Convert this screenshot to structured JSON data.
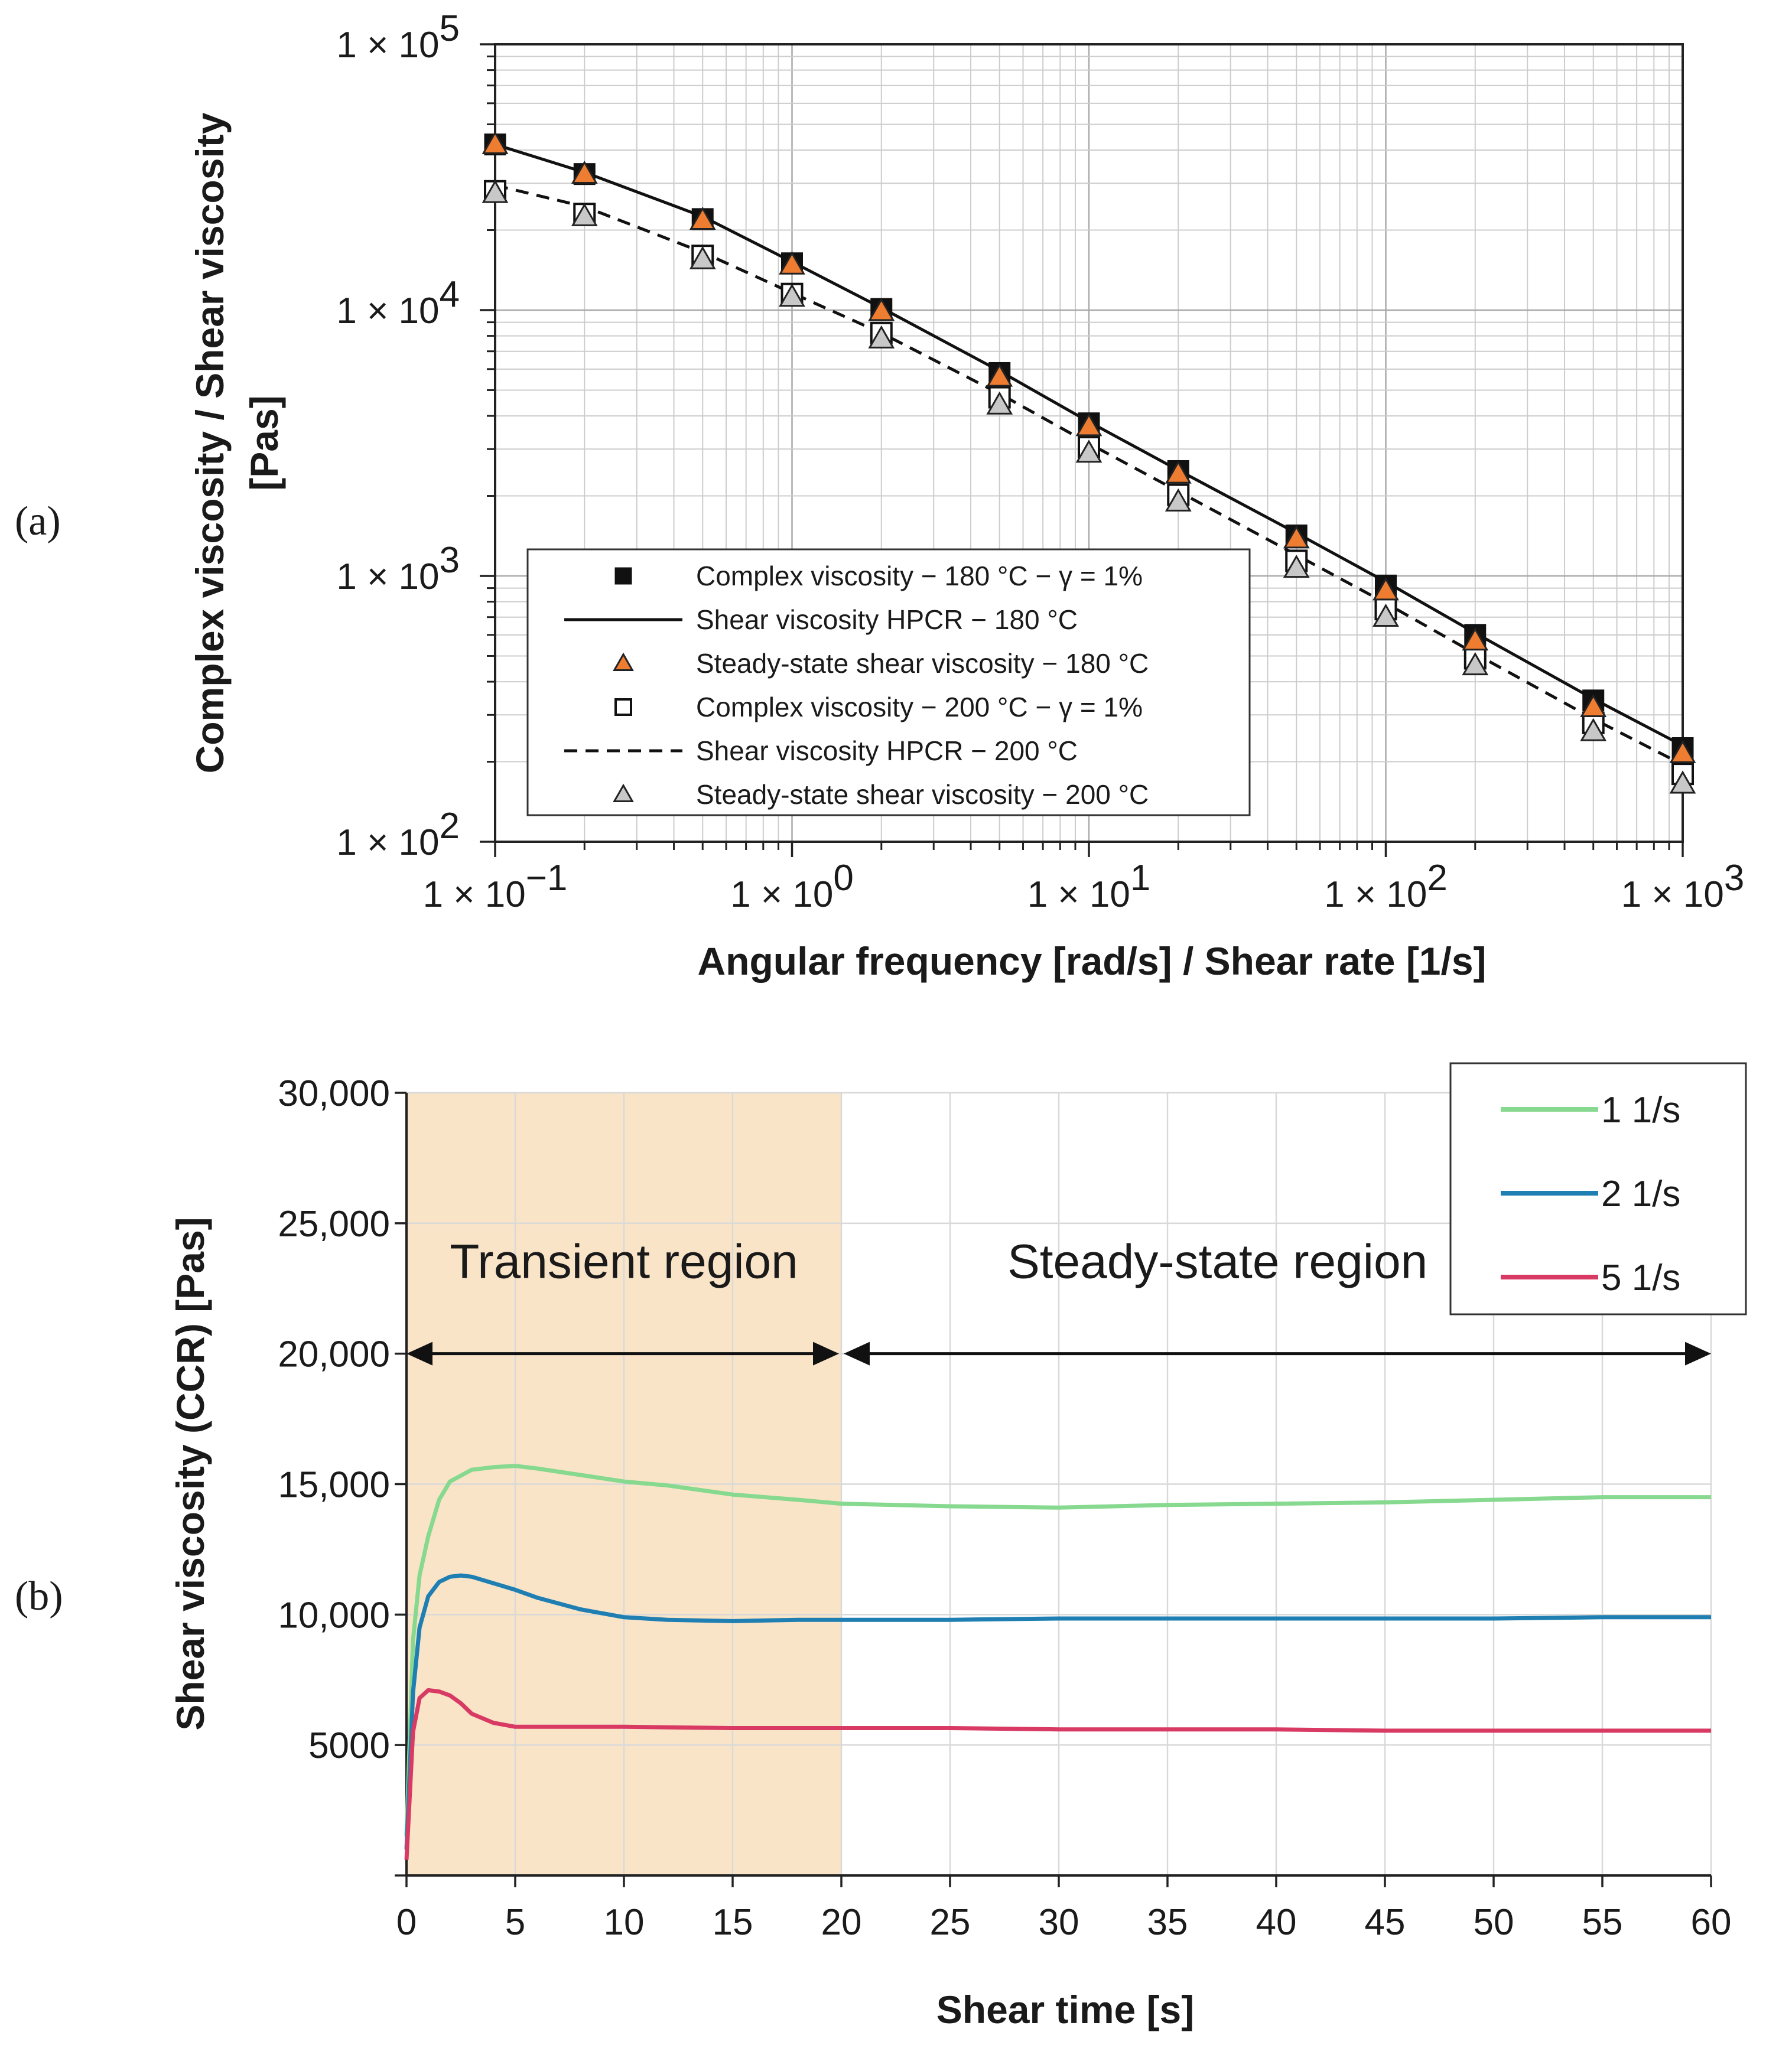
{
  "panels": {
    "a": {
      "label": "(a)"
    },
    "b": {
      "label": "(b)"
    }
  },
  "chart_data": [
    {
      "id": "a",
      "type": "scatter",
      "title": "",
      "xlabel": "Angular frequency [rad/s] / Shear rate [1/s]",
      "ylabel": "Complex viscosity / Shear viscosity",
      "ylabel2": "[Pas]",
      "xscale": "log",
      "yscale": "log",
      "xlim": [
        0.1,
        1000
      ],
      "ylim": [
        100,
        100000
      ],
      "grid": true,
      "legend_position": "bottom-right",
      "x_ticks": [
        {
          "mant": "1 × 10",
          "exp": "−1"
        },
        {
          "mant": "1 × 10",
          "exp": "0"
        },
        {
          "mant": "1 × 10",
          "exp": "1"
        },
        {
          "mant": "1 × 10",
          "exp": "2"
        },
        {
          "mant": "1 × 10",
          "exp": "3"
        }
      ],
      "y_ticks": [
        {
          "mant": "1 × 10",
          "exp": "2"
        },
        {
          "mant": "1 × 10",
          "exp": "3"
        },
        {
          "mant": "1 × 10",
          "exp": "4"
        },
        {
          "mant": "1 × 10",
          "exp": "5"
        }
      ],
      "series": [
        {
          "name": "Complex viscosity − 180 °C − γ = 1%",
          "marker": "square-filled",
          "color": "#111111",
          "x": [
            0.1,
            0.2,
            0.5,
            1,
            2,
            5,
            10,
            20,
            50,
            100,
            200,
            500,
            1000
          ],
          "y": [
            42000,
            32500,
            22000,
            15000,
            10100,
            5800,
            3750,
            2480,
            1420,
            920,
            600,
            340,
            225
          ]
        },
        {
          "name": "Shear viscosity HPCR − 180 °C",
          "style": "solid",
          "color": "#111111",
          "x": [
            0.1,
            0.2,
            0.5,
            1,
            2,
            5,
            10,
            20,
            50,
            100,
            200,
            500,
            1000
          ],
          "y": [
            42000,
            33000,
            22500,
            15200,
            10200,
            5900,
            3800,
            2500,
            1450,
            950,
            610,
            345,
            230
          ]
        },
        {
          "name": "Steady-state shear viscosity − 180 °C",
          "marker": "triangle-filled",
          "color": "#ee7d31",
          "x": [
            0.1,
            0.2,
            0.5,
            1,
            2,
            5,
            10,
            20,
            50,
            100,
            200,
            500,
            1000
          ],
          "y": [
            42000,
            32500,
            21800,
            14800,
            9900,
            5600,
            3650,
            2420,
            1380,
            880,
            570,
            320,
            215
          ]
        },
        {
          "name": "Complex viscosity − 200 °C − γ = 1%",
          "marker": "square-open",
          "color": "#111111",
          "x": [
            0.1,
            0.2,
            0.5,
            1,
            2,
            5,
            10,
            20,
            50,
            100,
            200,
            500,
            1000
          ],
          "y": [
            28000,
            23000,
            16000,
            11500,
            8200,
            4700,
            3050,
            2020,
            1140,
            750,
            490,
            280,
            180
          ]
        },
        {
          "name": "Shear viscosity HPCR − 200 °C",
          "style": "dashed",
          "color": "#111111",
          "x": [
            0.1,
            0.2,
            0.5,
            1,
            2,
            5,
            10,
            20,
            50,
            100,
            200,
            500,
            1000
          ],
          "y": [
            29500,
            24500,
            16500,
            11600,
            8200,
            4850,
            3150,
            2080,
            1200,
            790,
            510,
            290,
            195
          ]
        },
        {
          "name": "Steady-state shear viscosity − 200 °C",
          "marker": "triangle-open",
          "color": "#111111",
          "x": [
            0.1,
            0.2,
            0.5,
            1,
            2,
            5,
            10,
            20,
            50,
            100,
            200,
            500,
            1000
          ],
          "y": [
            27500,
            22500,
            15500,
            11200,
            7800,
            4400,
            2900,
            1900,
            1070,
            700,
            460,
            260,
            165
          ]
        }
      ]
    },
    {
      "id": "b",
      "type": "line",
      "title": "",
      "xlabel": "Shear time [s]",
      "ylabel": "Shear viscosity (CCR) [Pas]",
      "xlim": [
        0,
        60
      ],
      "ylim": [
        0,
        30000
      ],
      "grid": true,
      "legend_position": "top-right",
      "x_ticks": [
        "0",
        "5",
        "10",
        "15",
        "20",
        "25",
        "30",
        "35",
        "40",
        "45",
        "50",
        "55",
        "60"
      ],
      "y_ticks": [
        "5000",
        "10,000",
        "15,000",
        "20,000",
        "25,000",
        "30,000"
      ],
      "annotations": {
        "transient": {
          "text": "Transient region",
          "x_start": 0,
          "x_end": 20,
          "color": "#f9e4c8"
        },
        "steady": {
          "text": "Steady-state region",
          "x_start": 20,
          "x_end": 60
        }
      },
      "series": [
        {
          "name": "1 1/s",
          "color": "#86d98f",
          "x": [
            0,
            0.3,
            0.6,
            1,
            1.5,
            2,
            3,
            4,
            5,
            6,
            8,
            10,
            12,
            15,
            18,
            20,
            25,
            30,
            35,
            40,
            45,
            50,
            55,
            60
          ],
          "y": [
            1500,
            9000,
            11500,
            13000,
            14400,
            15100,
            15550,
            15650,
            15700,
            15600,
            15350,
            15100,
            14950,
            14600,
            14400,
            14250,
            14150,
            14100,
            14200,
            14250,
            14300,
            14400,
            14500,
            14500
          ]
        },
        {
          "name": "2 1/s",
          "color": "#1f7fb3",
          "x": [
            0,
            0.3,
            0.6,
            1,
            1.5,
            2,
            2.5,
            3,
            4,
            5,
            6,
            8,
            10,
            12,
            15,
            18,
            20,
            25,
            30,
            35,
            40,
            45,
            50,
            55,
            60
          ],
          "y": [
            1000,
            7000,
            9500,
            10700,
            11250,
            11450,
            11500,
            11450,
            11200,
            10950,
            10650,
            10200,
            9900,
            9800,
            9750,
            9800,
            9800,
            9800,
            9850,
            9850,
            9850,
            9850,
            9850,
            9900,
            9900
          ]
        },
        {
          "name": "5 1/s",
          "color": "#d83a64",
          "x": [
            0,
            0.3,
            0.6,
            1,
            1.5,
            2,
            2.5,
            3,
            4,
            5,
            7,
            10,
            15,
            20,
            25,
            30,
            35,
            40,
            45,
            50,
            55,
            60
          ],
          "y": [
            600,
            5500,
            6800,
            7100,
            7050,
            6900,
            6600,
            6200,
            5850,
            5700,
            5700,
            5700,
            5650,
            5650,
            5650,
            5600,
            5600,
            5600,
            5550,
            5550,
            5550,
            5550
          ]
        }
      ]
    }
  ]
}
